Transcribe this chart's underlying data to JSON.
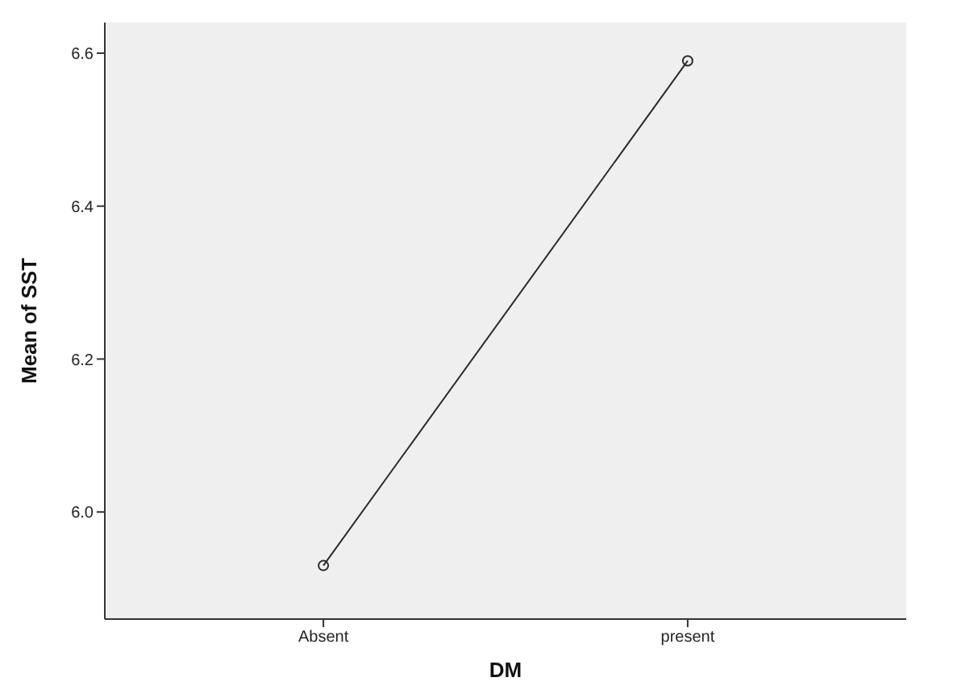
{
  "chart_data": {
    "type": "line",
    "xlabel": "DM",
    "ylabel": "Mean of SST",
    "categories": [
      "Absent",
      "present"
    ],
    "series": [
      {
        "color": "#2b2b2b",
        "values": [
          5.93,
          6.59
        ]
      }
    ],
    "ylim": [
      5.86,
      6.64
    ],
    "yticks": [
      {
        "value": 6.0,
        "label": "6.0"
      },
      {
        "value": 6.2,
        "label": "6.2"
      },
      {
        "value": 6.4,
        "label": "6.4"
      },
      {
        "value": 6.6,
        "label": "6.6"
      }
    ],
    "marker": "circle",
    "line_style": "solid",
    "grid": false
  }
}
